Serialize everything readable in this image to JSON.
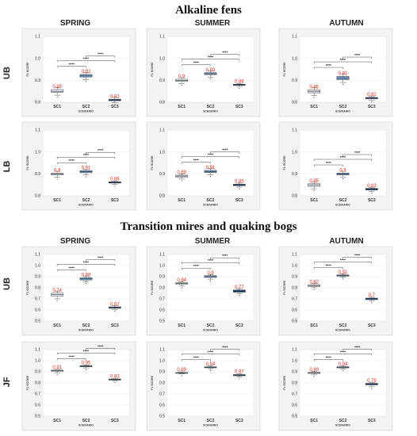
{
  "figure": {
    "sections": [
      {
        "title": "Alkaline fens",
        "seasons": [
          "SPRING",
          "SUMMER",
          "AUTUMN"
        ],
        "rows": [
          "UB",
          "LB"
        ]
      },
      {
        "title": "Transition mires and quaking bogs",
        "seasons": [
          "SPRING",
          "SUMMER",
          "AUTUMN"
        ],
        "rows": [
          "UB",
          "JF"
        ]
      }
    ]
  },
  "chart_data": [
    {
      "type": "box",
      "section": "Alkaline fens",
      "row": "UB",
      "season": "SPRING",
      "categories": [
        "SC1",
        "SC2",
        "SC3"
      ],
      "medians": [
        0.85,
        0.92,
        0.81
      ],
      "median_labels": [
        "0.85",
        "0.92",
        "0.81"
      ],
      "q1": [
        0.845,
        0.915,
        0.807
      ],
      "q3": [
        0.858,
        0.927,
        0.814
      ],
      "whisker_low": [
        0.832,
        0.903,
        0.797
      ],
      "whisker_high": [
        0.868,
        0.935,
        0.823
      ],
      "colors": [
        "#e8eef5",
        "#7fa5cf",
        "#1f4e85"
      ],
      "significance": [
        "****",
        "****",
        "****"
      ],
      "xlabel": "SCENARIO",
      "ylabel": "F1 SCORE",
      "ylim": [
        0.8,
        1.1
      ],
      "yticks": [
        "0.8",
        "0.9",
        "1.0",
        "1.1"
      ]
    },
    {
      "type": "box",
      "section": "Alkaline fens",
      "row": "UB",
      "season": "SUMMER",
      "categories": [
        "SC1",
        "SC2",
        "SC3"
      ],
      "medians": [
        0.9,
        0.93,
        0.88
      ],
      "median_labels": [
        "0.9",
        "0.93",
        "0.88"
      ],
      "q1": [
        0.895,
        0.926,
        0.877
      ],
      "q3": [
        0.905,
        0.935,
        0.882
      ],
      "whisker_low": [
        0.885,
        0.915,
        0.872
      ],
      "whisker_high": [
        0.912,
        0.942,
        0.886
      ],
      "colors": [
        "#e8eef5",
        "#7fa5cf",
        "#1f4e85"
      ],
      "significance": [
        "****",
        "****",
        "****"
      ],
      "xlabel": "SCENARIO",
      "ylabel": "F1 SCORE",
      "ylim": [
        0.8,
        1.1
      ],
      "yticks": [
        "0.8",
        "0.9",
        "1.0",
        "1.1"
      ]
    },
    {
      "type": "box",
      "section": "Alkaline fens",
      "row": "UB",
      "season": "AUTUMN",
      "categories": [
        "SC1",
        "SC2",
        "SC3"
      ],
      "medians": [
        0.85,
        0.91,
        0.82
      ],
      "median_labels": [
        "0.85",
        "0.91",
        "0.82"
      ],
      "q1": [
        0.843,
        0.903,
        0.816
      ],
      "q3": [
        0.857,
        0.918,
        0.822
      ],
      "whisker_low": [
        0.83,
        0.89,
        0.81
      ],
      "whisker_high": [
        0.868,
        0.93,
        0.828
      ],
      "colors": [
        "#e8eef5",
        "#7fa5cf",
        "#1f4e85"
      ],
      "significance": [
        "****",
        "****",
        "****"
      ],
      "xlabel": "SCENARIO",
      "ylabel": "F1 SCORE",
      "ylim": [
        0.8,
        1.1
      ],
      "yticks": [
        "0.8",
        "0.9",
        "1.0",
        "1.1"
      ]
    },
    {
      "type": "box",
      "section": "Alkaline fens",
      "row": "LB",
      "season": "SPRING",
      "categories": [
        "SC1",
        "SC2",
        "SC3"
      ],
      "medians": [
        0.9,
        0.91,
        0.86
      ],
      "median_labels": [
        "0.9",
        "0.91",
        "0.86"
      ],
      "q1": [
        0.895,
        0.905,
        0.858
      ],
      "q3": [
        0.904,
        0.915,
        0.864
      ],
      "whisker_low": [
        0.885,
        0.895,
        0.852
      ],
      "whisker_high": [
        0.912,
        0.922,
        0.868
      ],
      "colors": [
        "#e8eef5",
        "#7fa5cf",
        "#1f4e85"
      ],
      "significance": [
        "****",
        "****",
        "****"
      ],
      "xlabel": "SCENARIO",
      "ylabel": "F1 SCORE",
      "ylim": [
        0.8,
        1.1
      ],
      "yticks": [
        "0.8",
        "0.9",
        "1.0",
        "1.1"
      ]
    },
    {
      "type": "box",
      "section": "Alkaline fens",
      "row": "LB",
      "season": "SUMMER",
      "categories": [
        "SC1",
        "SC2",
        "SC3"
      ],
      "medians": [
        0.89,
        0.91,
        0.85
      ],
      "median_labels": [
        "0.89",
        "0.91",
        "0.85"
      ],
      "q1": [
        0.885,
        0.906,
        0.846
      ],
      "q3": [
        0.894,
        0.916,
        0.853
      ],
      "whisker_low": [
        0.876,
        0.896,
        0.84
      ],
      "whisker_high": [
        0.9,
        0.924,
        0.858
      ],
      "colors": [
        "#e8eef5",
        "#7fa5cf",
        "#1f4e85"
      ],
      "significance": [
        "****",
        "****",
        "****"
      ],
      "xlabel": "SCENARIO",
      "ylabel": "F1 SCORE",
      "ylim": [
        0.8,
        1.1
      ],
      "yticks": [
        "0.8",
        "0.9",
        "1.0",
        "1.1"
      ]
    },
    {
      "type": "box",
      "section": "Alkaline fens",
      "row": "LB",
      "season": "AUTUMN",
      "categories": [
        "SC1",
        "SC2",
        "SC3"
      ],
      "medians": [
        0.85,
        0.9,
        0.83
      ],
      "median_labels": [
        "0.85",
        "0.9",
        "0.83"
      ],
      "q1": [
        0.843,
        0.895,
        0.826
      ],
      "q3": [
        0.855,
        0.904,
        0.834
      ],
      "whisker_low": [
        0.832,
        0.886,
        0.82
      ],
      "whisker_high": [
        0.862,
        0.912,
        0.838
      ],
      "colors": [
        "#e8eef5",
        "#7fa5cf",
        "#1f4e85"
      ],
      "significance": [
        "****",
        "****",
        "****"
      ],
      "xlabel": "SCENARIO",
      "ylabel": "F1 SCORE",
      "ylim": [
        0.8,
        1.1
      ],
      "yticks": [
        "0.8",
        "0.9",
        "1.0",
        "1.1"
      ]
    },
    {
      "type": "box",
      "section": "Transition mires and quaking bogs",
      "row": "UB",
      "season": "SPRING",
      "categories": [
        "SC1",
        "SC2",
        "SC3"
      ],
      "medians": [
        0.74,
        0.88,
        0.62
      ],
      "median_labels": [
        "0.74",
        "0.88",
        "0.62"
      ],
      "q1": [
        0.725,
        0.87,
        0.615
      ],
      "q3": [
        0.752,
        0.89,
        0.628
      ],
      "whisker_low": [
        0.7,
        0.855,
        0.605
      ],
      "whisker_high": [
        0.77,
        0.905,
        0.64
      ],
      "colors": [
        "#e8eef5",
        "#7fa5cf",
        "#1f4e85"
      ],
      "significance": [
        "****",
        "****",
        "****"
      ],
      "xlabel": "SCENARIO",
      "ylabel": "F1 SCORE",
      "ylim": [
        0.5,
        1.1
      ],
      "yticks": [
        "0.5",
        "0.6",
        "0.7",
        "0.8",
        "0.9",
        "1.0",
        "1.1"
      ]
    },
    {
      "type": "box",
      "section": "Transition mires and quaking bogs",
      "row": "UB",
      "season": "SUMMER",
      "categories": [
        "SC1",
        "SC2",
        "SC3"
      ],
      "medians": [
        0.84,
        0.9,
        0.77
      ],
      "median_labels": [
        "0.84",
        "0.9",
        "0.77"
      ],
      "q1": [
        0.832,
        0.893,
        0.76
      ],
      "q3": [
        0.846,
        0.91,
        0.78
      ],
      "whisker_low": [
        0.815,
        0.878,
        0.745
      ],
      "whisker_high": [
        0.856,
        0.92,
        0.792
      ],
      "colors": [
        "#e8eef5",
        "#7fa5cf",
        "#1f4e85"
      ],
      "significance": [
        "****",
        "****",
        "****"
      ],
      "xlabel": "SCENARIO",
      "ylabel": "F1 SCORE",
      "ylim": [
        0.5,
        1.1
      ],
      "yticks": [
        "0.5",
        "0.6",
        "0.7",
        "0.8",
        "0.9",
        "1.0",
        "1.1"
      ]
    },
    {
      "type": "box",
      "section": "Transition mires and quaking bogs",
      "row": "UB",
      "season": "AUTUMN",
      "categories": [
        "SC1",
        "SC2",
        "SC3"
      ],
      "medians": [
        0.82,
        0.91,
        0.7
      ],
      "median_labels": [
        "0.82",
        "0.91",
        "0.7"
      ],
      "q1": [
        0.812,
        0.904,
        0.693
      ],
      "q3": [
        0.828,
        0.916,
        0.707
      ],
      "whisker_low": [
        0.8,
        0.895,
        0.68
      ],
      "whisker_high": [
        0.838,
        0.925,
        0.715
      ],
      "colors": [
        "#e8eef5",
        "#7fa5cf",
        "#1f4e85"
      ],
      "significance": [
        "****",
        "****",
        "****"
      ],
      "xlabel": "SCENARIO",
      "ylabel": "F1 SCORE",
      "ylim": [
        0.5,
        1.1
      ],
      "yticks": [
        "0.5",
        "0.6",
        "0.7",
        "0.8",
        "0.9",
        "1.0",
        "1.1"
      ]
    },
    {
      "type": "box",
      "section": "Transition mires and quaking bogs",
      "row": "JF",
      "season": "SPRING",
      "categories": [
        "SC1",
        "SC2",
        "SC3"
      ],
      "medians": [
        0.91,
        0.95,
        0.83
      ],
      "median_labels": [
        "0.91",
        "0.95",
        "0.83"
      ],
      "q1": [
        0.905,
        0.945,
        0.826
      ],
      "q3": [
        0.915,
        0.956,
        0.834
      ],
      "whisker_low": [
        0.892,
        0.935,
        0.82
      ],
      "whisker_high": [
        0.922,
        0.962,
        0.838
      ],
      "colors": [
        "#e8eef5",
        "#7fa5cf",
        "#1f4e85"
      ],
      "significance": [
        "****",
        "****",
        "****"
      ],
      "xlabel": "SCENARIO",
      "ylabel": "F1 SCORE",
      "ylim": [
        0.5,
        1.1
      ],
      "yticks": [
        "0.5",
        "0.6",
        "0.7",
        "0.8",
        "0.9",
        "1.0",
        "1.1"
      ]
    },
    {
      "type": "box",
      "section": "Transition mires and quaking bogs",
      "row": "JF",
      "season": "SUMMER",
      "categories": [
        "SC1",
        "SC2",
        "SC3"
      ],
      "medians": [
        0.89,
        0.94,
        0.87
      ],
      "median_labels": [
        "0.89",
        "0.94",
        "0.87"
      ],
      "q1": [
        0.886,
        0.936,
        0.864
      ],
      "q3": [
        0.894,
        0.946,
        0.875
      ],
      "whisker_low": [
        0.88,
        0.928,
        0.852
      ],
      "whisker_high": [
        0.9,
        0.952,
        0.88
      ],
      "colors": [
        "#e8eef5",
        "#7fa5cf",
        "#1f4e85"
      ],
      "significance": [
        "****",
        "****",
        "****"
      ],
      "xlabel": "SCENARIO",
      "ylabel": "F1 SCORE",
      "ylim": [
        0.5,
        1.1
      ],
      "yticks": [
        "0.5",
        "0.6",
        "0.7",
        "0.8",
        "0.9",
        "1.0",
        "1.1"
      ]
    },
    {
      "type": "box",
      "section": "Transition mires and quaking bogs",
      "row": "JF",
      "season": "AUTUMN",
      "categories": [
        "SC1",
        "SC2",
        "SC3"
      ],
      "medians": [
        0.89,
        0.94,
        0.79
      ],
      "median_labels": [
        "0.89",
        "0.94",
        "0.79"
      ],
      "q1": [
        0.885,
        0.935,
        0.782
      ],
      "q3": [
        0.895,
        0.946,
        0.796
      ],
      "whisker_low": [
        0.872,
        0.925,
        0.765
      ],
      "whisker_high": [
        0.905,
        0.955,
        0.802
      ],
      "colors": [
        "#e8eef5",
        "#7fa5cf",
        "#1f4e85"
      ],
      "significance": [
        "****",
        "****",
        "****"
      ],
      "xlabel": "SCENARIO",
      "ylabel": "F1 SCORE",
      "ylim": [
        0.5,
        1.1
      ],
      "yticks": [
        "0.5",
        "0.6",
        "0.7",
        "0.8",
        "0.9",
        "1.0",
        "1.1"
      ]
    }
  ]
}
